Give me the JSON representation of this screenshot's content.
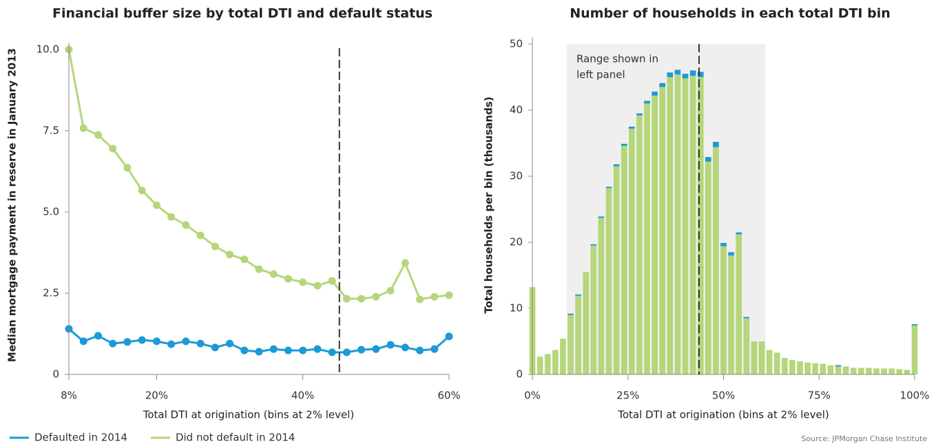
{
  "chart_data": [
    {
      "type": "line",
      "title": "Financial buffer size by total DTI and default status",
      "x_label": "Total DTI at origination (bins at 2% level)",
      "y_label": "Median mortgage payment in reserve in January 2013",
      "x": [
        8,
        10,
        12,
        14,
        16,
        18,
        20,
        22,
        24,
        26,
        28,
        30,
        32,
        34,
        36,
        38,
        40,
        42,
        44,
        46,
        48,
        50,
        52,
        54,
        56,
        58,
        60
      ],
      "series": [
        {
          "name": "Defaulted in 2014",
          "color": "#1a9ad6",
          "values": [
            1.4,
            1.02,
            1.19,
            0.95,
            1.0,
            1.06,
            1.02,
            0.93,
            1.02,
            0.95,
            0.83,
            0.95,
            0.74,
            0.7,
            0.78,
            0.74,
            0.74,
            0.78,
            0.68,
            0.68,
            0.76,
            0.78,
            0.91,
            0.83,
            0.74,
            0.78,
            1.17
          ]
        },
        {
          "name": "Did not default in 2014",
          "color": "#b5d67a",
          "values": [
            10.0,
            7.58,
            7.37,
            6.95,
            6.36,
            5.66,
            5.21,
            4.85,
            4.6,
            4.28,
            3.94,
            3.69,
            3.54,
            3.24,
            3.09,
            2.94,
            2.84,
            2.73,
            2.88,
            2.33,
            2.33,
            2.39,
            2.58,
            3.43,
            2.31,
            2.39,
            2.44
          ]
        }
      ],
      "xlim": [
        8,
        60
      ],
      "xticks": [
        {
          "value": 8,
          "label": "8%"
        },
        {
          "value": 20,
          "label": "20%"
        },
        {
          "value": 40,
          "label": "40%"
        },
        {
          "value": 60,
          "label": "60%"
        }
      ],
      "ylim": [
        0,
        10
      ],
      "yticks": [
        0,
        2.5,
        {
          "value": 5,
          "label": "5.0"
        },
        7.5,
        {
          "value": 10,
          "label": "10.0"
        }
      ],
      "vline": 45,
      "legend": "bottom-left"
    },
    {
      "type": "bar",
      "title": "Number of households in each total DTI bin",
      "x_label": "Total DTI at origination (bins at 2% level)",
      "y_label": "Total households per bin (thousands)",
      "annotation": [
        "Range shown in",
        "left panel"
      ],
      "x": [
        0,
        2,
        4,
        6,
        8,
        10,
        12,
        14,
        16,
        18,
        20,
        22,
        24,
        26,
        28,
        30,
        32,
        34,
        36,
        38,
        40,
        42,
        44,
        46,
        48,
        50,
        52,
        54,
        56,
        58,
        60,
        62,
        64,
        66,
        68,
        70,
        72,
        74,
        76,
        78,
        80,
        82,
        84,
        86,
        88,
        90,
        92,
        94,
        96,
        98,
        100
      ],
      "series": [
        {
          "name": "Did not default in 2014",
          "color": "#b5d67a",
          "values": [
            13.2,
            2.7,
            3.1,
            3.7,
            5.4,
            9.0,
            11.9,
            15.5,
            19.5,
            23.7,
            28.2,
            31.5,
            34.6,
            37.2,
            39.2,
            41.0,
            42.2,
            43.5,
            45.0,
            45.4,
            44.8,
            45.2,
            45.0,
            32.2,
            34.4,
            19.4,
            18.0,
            21.2,
            8.5,
            5.0,
            5.0,
            3.7,
            3.3,
            2.5,
            2.2,
            2.0,
            1.8,
            1.7,
            1.6,
            1.4,
            1.2,
            1.2,
            1.0,
            1.0,
            1.0,
            0.9,
            0.9,
            0.9,
            0.8,
            0.7,
            7.4
          ]
        },
        {
          "name": "Defaulted in 2014",
          "color": "#1a9ad6",
          "values": [
            0,
            0,
            0,
            0,
            0,
            0.2,
            0.2,
            0,
            0.2,
            0.2,
            0.2,
            0.3,
            0.3,
            0.3,
            0.3,
            0.4,
            0.6,
            0.6,
            0.7,
            0.7,
            0.7,
            0.8,
            0.8,
            0.7,
            0.8,
            0.5,
            0.5,
            0.3,
            0.2,
            0,
            0,
            0,
            0,
            0,
            0,
            0,
            0,
            0,
            0,
            0,
            0.2,
            0,
            0,
            0,
            0,
            0,
            0,
            0,
            0,
            0,
            0.2
          ]
        }
      ],
      "xlim": [
        0,
        100
      ],
      "xticks": [
        {
          "value": 0,
          "label": "0%"
        },
        {
          "value": 25,
          "label": "25%"
        },
        {
          "value": 50,
          "label": "50%"
        },
        {
          "value": 75,
          "label": "75%"
        },
        {
          "value": 100,
          "label": "100%"
        }
      ],
      "ylim": [
        0,
        50
      ],
      "yticks": [
        0,
        10,
        20,
        30,
        40,
        50
      ],
      "shade": [
        9,
        61
      ],
      "shade_color": "#efefef",
      "vline": 43.6,
      "stacked": true
    }
  ],
  "source": "Source: JPMorgan Chase Institute"
}
